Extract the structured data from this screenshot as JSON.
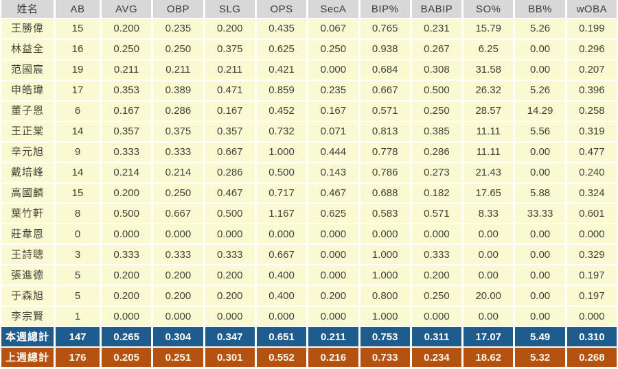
{
  "colors": {
    "header_bg": "#d8d8d8",
    "header_text": "#3c3c3c",
    "cell_bg": "#fafad2",
    "text": "#3f4038",
    "this_week_bg": "#1f5c8e",
    "last_week_bg": "#b35211",
    "summary_text": "#ffffff",
    "summary_text_warm": "#fcf6ea"
  },
  "chart_data": {
    "type": "table",
    "columns": [
      "姓名",
      "AB",
      "AVG",
      "OBP",
      "SLG",
      "OPS",
      "SecA",
      "BIP%",
      "BABIP",
      "SO%",
      "BB%",
      "wOBA"
    ],
    "rows": [
      {
        "name": "王勝偉",
        "values": [
          "15",
          "0.200",
          "0.235",
          "0.200",
          "0.435",
          "0.067",
          "0.765",
          "0.231",
          "15.79",
          "5.26",
          "0.199"
        ]
      },
      {
        "name": "林益全",
        "values": [
          "16",
          "0.250",
          "0.250",
          "0.375",
          "0.625",
          "0.250",
          "0.938",
          "0.267",
          "6.25",
          "0.00",
          "0.296"
        ]
      },
      {
        "name": "范國宸",
        "values": [
          "19",
          "0.211",
          "0.211",
          "0.211",
          "0.421",
          "0.000",
          "0.684",
          "0.308",
          "31.58",
          "0.00",
          "0.207"
        ]
      },
      {
        "name": "申皓瑋",
        "values": [
          "17",
          "0.353",
          "0.389",
          "0.471",
          "0.859",
          "0.235",
          "0.667",
          "0.500",
          "26.32",
          "5.26",
          "0.396"
        ]
      },
      {
        "name": "董子恩",
        "values": [
          "6",
          "0.167",
          "0.286",
          "0.167",
          "0.452",
          "0.167",
          "0.571",
          "0.250",
          "28.57",
          "14.29",
          "0.258"
        ]
      },
      {
        "name": "王正棠",
        "values": [
          "14",
          "0.357",
          "0.375",
          "0.357",
          "0.732",
          "0.071",
          "0.813",
          "0.385",
          "11.11",
          "5.56",
          "0.319"
        ]
      },
      {
        "name": "辛元旭",
        "values": [
          "9",
          "0.333",
          "0.333",
          "0.667",
          "1.000",
          "0.444",
          "0.778",
          "0.286",
          "11.11",
          "0.00",
          "0.477"
        ]
      },
      {
        "name": "戴培峰",
        "values": [
          "14",
          "0.214",
          "0.214",
          "0.286",
          "0.500",
          "0.143",
          "0.786",
          "0.273",
          "21.43",
          "0.00",
          "0.240"
        ]
      },
      {
        "name": "高國麟",
        "values": [
          "15",
          "0.200",
          "0.250",
          "0.467",
          "0.717",
          "0.467",
          "0.688",
          "0.182",
          "17.65",
          "5.88",
          "0.324"
        ]
      },
      {
        "name": "葉竹軒",
        "values": [
          "8",
          "0.500",
          "0.667",
          "0.500",
          "1.167",
          "0.625",
          "0.583",
          "0.571",
          "8.33",
          "33.33",
          "0.601"
        ]
      },
      {
        "name": "莊韋恩",
        "values": [
          "0",
          "0.000",
          "0.000",
          "0.000",
          "0.000",
          "0.000",
          "0.000",
          "0.000",
          "0.00",
          "0.00",
          "0.000"
        ]
      },
      {
        "name": "王詩聰",
        "values": [
          "3",
          "0.333",
          "0.333",
          "0.333",
          "0.667",
          "0.000",
          "1.000",
          "0.333",
          "0.00",
          "0.00",
          "0.329"
        ]
      },
      {
        "name": "張進德",
        "values": [
          "5",
          "0.200",
          "0.200",
          "0.200",
          "0.400",
          "0.000",
          "1.000",
          "0.200",
          "0.00",
          "0.00",
          "0.197"
        ]
      },
      {
        "name": "于森旭",
        "values": [
          "5",
          "0.200",
          "0.200",
          "0.200",
          "0.400",
          "0.200",
          "0.800",
          "0.250",
          "20.00",
          "0.00",
          "0.197"
        ]
      },
      {
        "name": "李宗賢",
        "values": [
          "1",
          "0.000",
          "0.000",
          "0.000",
          "0.000",
          "0.000",
          "1.000",
          "0.000",
          "0.00",
          "0.00",
          "0.000"
        ]
      }
    ],
    "summary_rows": [
      {
        "key": "this_week",
        "name": "本週總計",
        "values": [
          "147",
          "0.265",
          "0.304",
          "0.347",
          "0.651",
          "0.211",
          "0.753",
          "0.311",
          "17.07",
          "5.49",
          "0.310"
        ]
      },
      {
        "key": "last_week",
        "name": "上週總計",
        "values": [
          "176",
          "0.205",
          "0.251",
          "0.301",
          "0.552",
          "0.216",
          "0.733",
          "0.234",
          "18.62",
          "5.32",
          "0.268"
        ]
      }
    ]
  }
}
